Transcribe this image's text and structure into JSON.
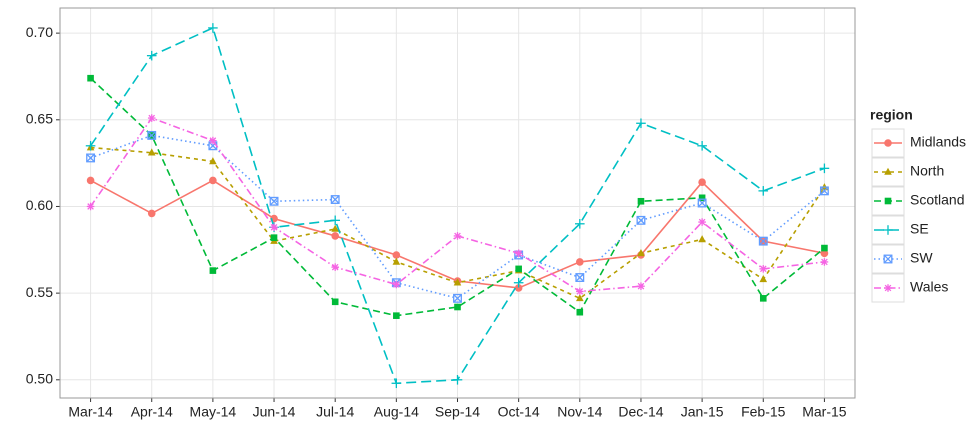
{
  "chart_data": {
    "type": "line",
    "categories": [
      "Mar-14",
      "Apr-14",
      "May-14",
      "Jun-14",
      "Jul-14",
      "Aug-14",
      "Sep-14",
      "Oct-14",
      "Nov-14",
      "Dec-14",
      "Jan-15",
      "Feb-15",
      "Mar-15"
    ],
    "legend_title": "region",
    "legend_position": "right",
    "grid": true,
    "ylim": [
      0.4895,
      0.7145
    ],
    "yticks": [
      {
        "value": 0.5,
        "label": "0.50"
      },
      0.55,
      {
        "value": 0.6,
        "label": "0.60"
      },
      0.65,
      {
        "value": 0.7,
        "label": "0.70"
      }
    ],
    "series": [
      {
        "name": "Midlands",
        "color": "#F8766D",
        "dash": "none",
        "marker": "circle",
        "values": [
          0.615,
          0.596,
          0.615,
          0.593,
          0.583,
          0.572,
          0.557,
          0.553,
          0.568,
          0.572,
          0.614,
          0.58,
          0.573
        ]
      },
      {
        "name": "North",
        "color": "#B79F00",
        "dash": "4,4",
        "marker": "triangle",
        "values": [
          0.634,
          0.631,
          0.626,
          0.58,
          0.587,
          0.568,
          0.556,
          0.563,
          0.547,
          0.573,
          0.581,
          0.558,
          0.611
        ]
      },
      {
        "name": "Scotland",
        "color": "#00BA38",
        "dash": "7,4",
        "marker": "square",
        "values": [
          0.674,
          0.641,
          0.563,
          0.582,
          0.545,
          0.537,
          0.542,
          0.564,
          0.539,
          0.603,
          0.605,
          0.547,
          0.576
        ]
      },
      {
        "name": "SE",
        "color": "#00BFC4",
        "dash": "10,5",
        "marker": "plus",
        "values": [
          0.635,
          0.687,
          0.703,
          0.588,
          0.592,
          0.498,
          0.5,
          0.556,
          0.59,
          0.648,
          0.635,
          0.609,
          0.622
        ]
      },
      {
        "name": "SW",
        "color": "#619CFF",
        "dash": "1.5,3",
        "marker": "boxx",
        "values": [
          0.628,
          0.641,
          0.635,
          0.603,
          0.604,
          0.556,
          0.547,
          0.572,
          0.559,
          0.592,
          0.602,
          0.58,
          0.609
        ]
      },
      {
        "name": "Wales",
        "color": "#F564E3",
        "dash": "7,3,1.5,3",
        "marker": "asterisk",
        "values": [
          0.6,
          0.651,
          0.638,
          0.588,
          0.565,
          0.555,
          0.583,
          0.573,
          0.551,
          0.554,
          0.591,
          0.564,
          0.568
        ]
      }
    ]
  }
}
